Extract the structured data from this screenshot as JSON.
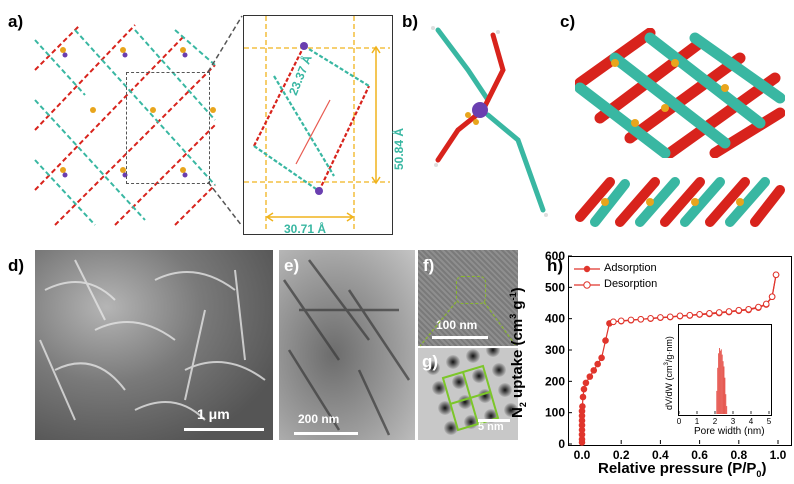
{
  "panel_labels": {
    "a": "a)",
    "b": "b)",
    "c": "c)",
    "d": "d)",
    "e": "e)",
    "f": "f)",
    "g": "g)",
    "h": "h)"
  },
  "structure": {
    "dim_diagonal": "23.37 Å",
    "dim_vertical": "50.84 Å",
    "dim_horizontal": "30.71 Å"
  },
  "micrographs": {
    "d_scale": "1 μm",
    "e_scale": "200 nm",
    "f_scale": "100 nm",
    "g_scale": "5 nm"
  },
  "colors": {
    "red": "#d8231c",
    "teal": "#39b7a2",
    "gold": "#e8a51c",
    "dim_orange": "#f0b31d",
    "dim_red": "#e85a50",
    "chart_line": "#e0352c"
  },
  "chart_data": [
    {
      "type": "line",
      "panel": "h",
      "xlabel": "Relative pressure (P/P0)",
      "ylabel": "N2 uptake (cm3 g-1)",
      "xlim": [
        0,
        1.0
      ],
      "ylim": [
        0,
        600
      ],
      "xticks": [
        "0.0",
        "0.2",
        "0.4",
        "0.6",
        "0.8",
        "1.0"
      ],
      "yticks": [
        "0",
        "100",
        "200",
        "300",
        "400",
        "500",
        "600"
      ],
      "legend_position": "top-left",
      "series": [
        {
          "name": "Adsorption",
          "marker": "filled-circle",
          "x": [
            0.0,
            0.0,
            0.0,
            0.0,
            0.0,
            0.0,
            0.0,
            0.0,
            0.002,
            0.005,
            0.01,
            0.02,
            0.04,
            0.06,
            0.08,
            0.1,
            0.12,
            0.14,
            0.16,
            0.2,
            0.25,
            0.3,
            0.35,
            0.4,
            0.45,
            0.5,
            0.55,
            0.6,
            0.65,
            0.7,
            0.75,
            0.8,
            0.85,
            0.9,
            0.94,
            0.97,
            0.99
          ],
          "y": [
            5,
            15,
            30,
            45,
            60,
            75,
            90,
            105,
            120,
            150,
            175,
            195,
            215,
            235,
            255,
            275,
            330,
            385,
            390,
            392,
            395,
            398,
            400,
            403,
            405,
            408,
            410,
            413,
            415,
            418,
            421,
            425,
            428,
            435,
            445,
            470,
            540
          ]
        },
        {
          "name": "Desorption",
          "marker": "open-circle",
          "x": [
            0.99,
            0.97,
            0.94,
            0.9,
            0.85,
            0.8,
            0.75,
            0.7,
            0.65,
            0.6,
            0.55,
            0.5,
            0.45,
            0.4,
            0.35,
            0.3,
            0.25,
            0.2,
            0.16
          ],
          "y": [
            540,
            470,
            447,
            437,
            430,
            427,
            423,
            420,
            417,
            414,
            411,
            409,
            406,
            404,
            401,
            398,
            396,
            393,
            390
          ]
        }
      ]
    },
    {
      "type": "bar",
      "panel": "h-inset",
      "xlabel": "Pore width (nm)",
      "ylabel": "dV/dW (cm3/g·nm)",
      "xlim": [
        0,
        5
      ],
      "xticks": [
        "0",
        "1",
        "2",
        "3",
        "4",
        "5"
      ],
      "x": [
        2.1,
        2.15,
        2.2,
        2.25,
        2.3,
        2.35,
        2.4,
        2.45,
        2.5,
        2.55,
        2.6,
        2.65
      ],
      "values": [
        0.35,
        0.7,
        0.92,
        1.0,
        0.96,
        0.98,
        0.9,
        0.8,
        0.72,
        0.55,
        0.3,
        0.12
      ]
    }
  ]
}
